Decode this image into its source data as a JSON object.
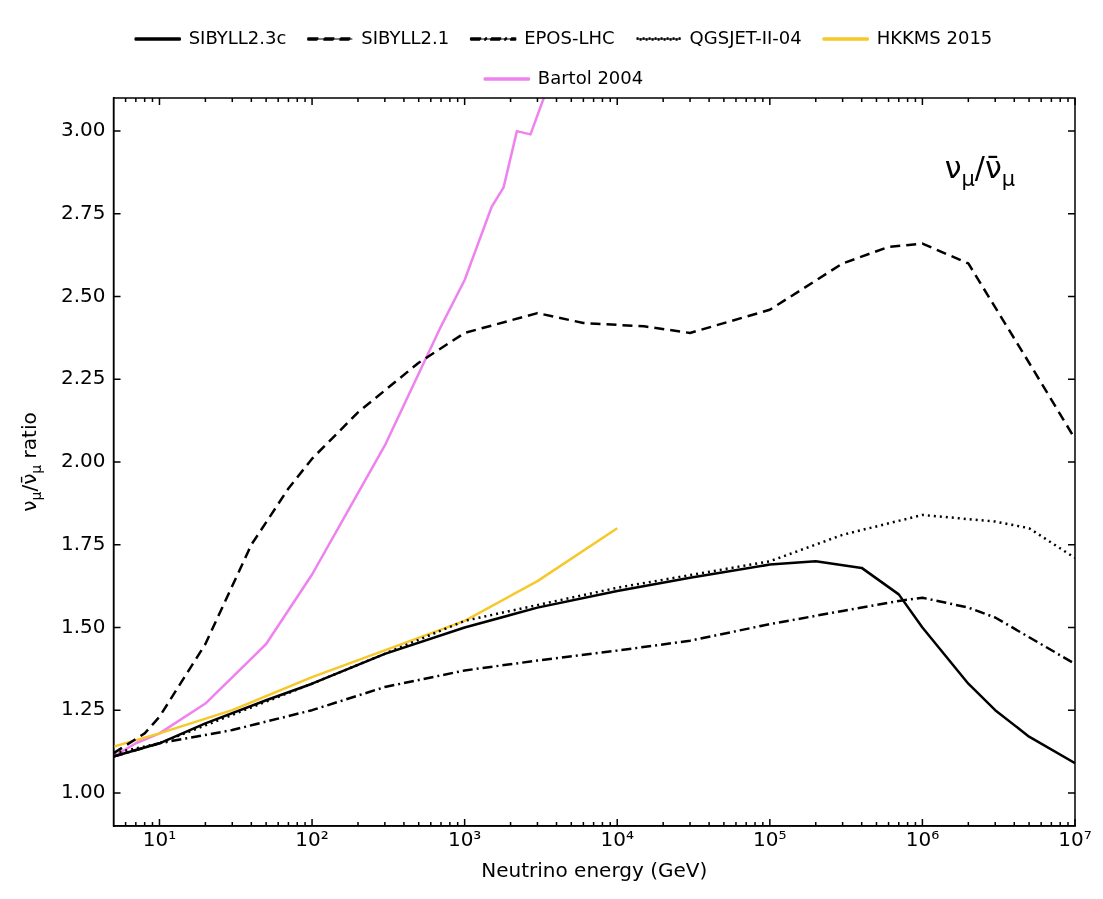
{
  "chart_data": {
    "type": "line",
    "xlabel": "Neutrino energy (GeV)",
    "ylabel": "ν$_{μ}$/ν̄$_{μ}$ ratio",
    "log": "x",
    "xlim": [
      5,
      10000000
    ],
    "ylim": [
      0.9,
      3.1
    ],
    "xticks": [
      {
        "value": 10,
        "label": "10¹"
      },
      {
        "value": 100,
        "label": "10²"
      },
      {
        "value": 1000,
        "label": "10³"
      },
      {
        "value": 10000,
        "label": "10⁴"
      },
      {
        "value": 100000,
        "label": "10⁵"
      },
      {
        "value": 1000000,
        "label": "10⁶"
      },
      {
        "value": 10000000,
        "label": "10⁷"
      }
    ],
    "yticks": [
      {
        "value": 1,
        "label": "1.00"
      },
      {
        "value": 1.25,
        "label": "1.25"
      },
      {
        "value": 1.5,
        "label": "1.50"
      },
      {
        "value": 1.75,
        "label": "1.75"
      },
      {
        "value": 2,
        "label": "2.00"
      },
      {
        "value": 2.25,
        "label": "2.25"
      },
      {
        "value": 2.5,
        "label": "2.50"
      },
      {
        "value": 2.75,
        "label": "2.75"
      },
      {
        "value": 3,
        "label": "3.00"
      }
    ],
    "grid": false,
    "legend": "top",
    "marker": "none",
    "annotations": [
      "ν$_{μ}$/ν̄$_{μ}$"
    ],
    "series": [
      {
        "name": "SIBYLL2.3c",
        "color": "#000000",
        "line_style": "solid",
        "x": [
          5,
          10,
          20,
          50,
          100,
          300,
          1000,
          3000,
          10000,
          30000,
          100000,
          200000,
          400000,
          700000,
          1000000,
          2000000,
          3000000,
          5000000,
          10000000
        ],
        "values": [
          1.11,
          1.15,
          1.21,
          1.28,
          1.33,
          1.42,
          1.5,
          1.56,
          1.61,
          1.65,
          1.69,
          1.7,
          1.68,
          1.6,
          1.5,
          1.33,
          1.25,
          1.17,
          1.09
        ]
      },
      {
        "name": "SIBYLL2.1",
        "color": "#000000",
        "line_style": "dashed",
        "x": [
          5,
          8,
          10,
          20,
          40,
          70,
          100,
          200,
          500,
          1000,
          3000,
          6000,
          15000,
          30000,
          100000,
          300000,
          600000,
          1000000,
          2000000,
          5000000,
          10000000
        ],
        "values": [
          1.12,
          1.18,
          1.23,
          1.45,
          1.75,
          1.92,
          2.01,
          2.15,
          2.3,
          2.39,
          2.45,
          2.42,
          2.41,
          2.39,
          2.46,
          2.6,
          2.65,
          2.66,
          2.6,
          2.3,
          2.07
        ]
      },
      {
        "name": "EPOS-LHC",
        "color": "#000000",
        "line_style": "dashdot",
        "x": [
          5,
          10,
          30,
          100,
          300,
          1000,
          3000,
          10000,
          30000,
          100000,
          300000,
          700000,
          1000000,
          2000000,
          3000000,
          10000000
        ],
        "values": [
          1.11,
          1.15,
          1.19,
          1.25,
          1.32,
          1.37,
          1.4,
          1.43,
          1.46,
          1.51,
          1.55,
          1.58,
          1.59,
          1.56,
          1.53,
          1.39
        ]
      },
      {
        "name": "QGSJET-II-04",
        "color": "#000000",
        "line_style": "dotted",
        "x": [
          5,
          10,
          100,
          1000,
          10000,
          100000,
          300000,
          1000000,
          3000000,
          5000000,
          10000000
        ],
        "values": [
          1.12,
          1.15,
          1.33,
          1.52,
          1.62,
          1.7,
          1.78,
          1.84,
          1.82,
          1.8,
          1.71
        ]
      },
      {
        "name": "HKKMS 2015",
        "color": "#f7c82a",
        "line_style": "solid",
        "x": [
          5,
          10,
          30,
          100,
          1000,
          3000,
          10000
        ],
        "values": [
          1.14,
          1.18,
          1.25,
          1.35,
          1.52,
          1.64,
          1.8
        ]
      },
      {
        "name": "Bartol 2004",
        "color": "#ee82ee",
        "line_style": "solid",
        "x": [
          5,
          7,
          10,
          20,
          50,
          100,
          300,
          700,
          1000,
          1500,
          1800,
          2200,
          2700,
          3300
        ],
        "values": [
          1.11,
          1.15,
          1.18,
          1.27,
          1.45,
          1.66,
          2.05,
          2.41,
          2.55,
          2.77,
          2.83,
          3.0,
          2.99,
          3.1
        ]
      }
    ]
  }
}
